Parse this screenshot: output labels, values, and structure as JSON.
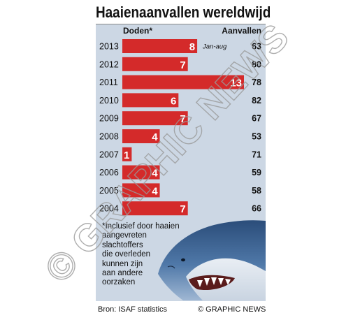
{
  "title": "Haaienaanvallen wereldwijd",
  "chart_data": {
    "type": "bar",
    "orientation": "horizontal",
    "categories": [
      "2013",
      "2012",
      "2011",
      "2010",
      "2009",
      "2008",
      "2007",
      "2006",
      "2005",
      "2004"
    ],
    "series": [
      {
        "name": "Doden*",
        "values": [
          8,
          7,
          13,
          6,
          7,
          4,
          1,
          4,
          4,
          7
        ]
      },
      {
        "name": "Aanvallen",
        "values": [
          63,
          80,
          78,
          82,
          67,
          53,
          71,
          59,
          58,
          66
        ]
      }
    ],
    "column_headers": {
      "deaths": "Doden*",
      "attacks": "Aanvallen"
    },
    "annotation": "Jan-aug",
    "bar_color": "#d42a2a",
    "panel_color": "#ccd7e4",
    "xlim": [
      0,
      13
    ]
  },
  "footnote_lines": [
    "*Inclusief door haaien",
    "aangevreten",
    "slachtoffers",
    "die overleden",
    "kunnen zijn",
    "aan andere",
    "oorzaken"
  ],
  "source": "Bron: ISAF statistics",
  "credit": "© GRAPHIC NEWS",
  "watermark": "© GRAPHIC NEWS",
  "image_description": "shark-head-illustration"
}
